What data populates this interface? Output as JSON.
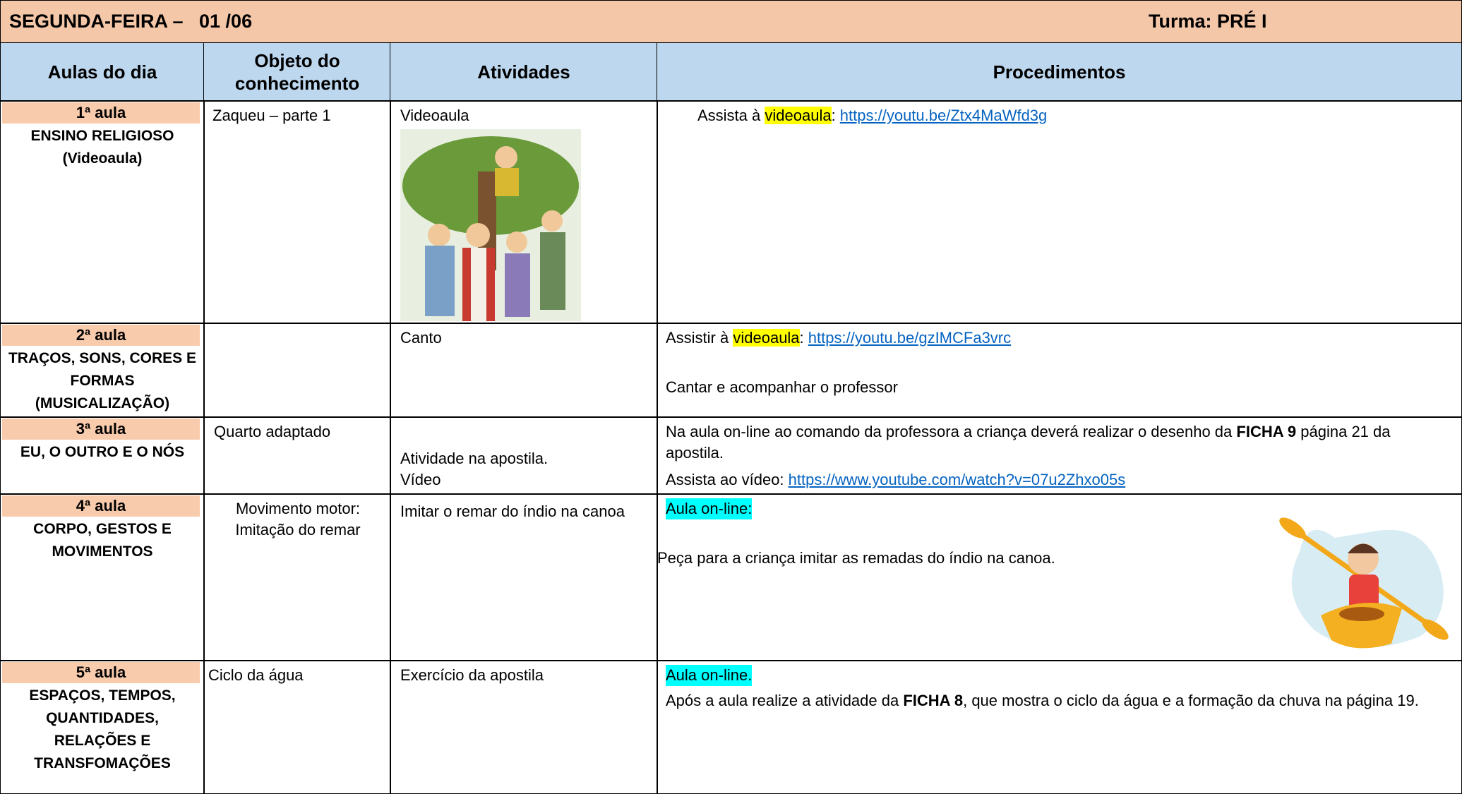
{
  "header": {
    "title": "SEGUNDA-FEIRA –   01 /06",
    "turma": "Turma: PRÉ I"
  },
  "table": {
    "columns": [
      "Aulas do dia",
      "Objeto do conhecimento",
      "Atividades",
      "Procedimentos"
    ],
    "rows": [
      {
        "lesson": "1ª aula",
        "subject": "ENSINO RELIGIOSO (Videoaula)",
        "object": "Zaqueu – parte 1",
        "activity": "Videoaula",
        "procedure": {
          "pre": "Assista à ",
          "highlight": "videoaula",
          "sep": ": ",
          "link": "https://youtu.be/Ztx4MaWfd3g"
        }
      },
      {
        "lesson": "2ª aula",
        "subject": "TRAÇOS, SONS, CORES E FORMAS (MUSICALIZAÇÃO)",
        "activity": "Canto",
        "procedure": {
          "pre": "Assistir à ",
          "highlight": "videoaula",
          "sep": ": ",
          "link": "https://youtu.be/gzIMCFa3vrc",
          "extra": "Cantar e acompanhar o professor"
        }
      },
      {
        "lesson": "3ª aula",
        "subject": "EU, O OUTRO E O NÓS",
        "object": "Quarto adaptado",
        "activity": "Atividade na apostila.",
        "activity2": "Vídeo",
        "procedure": {
          "pre": "Na aula on-line ao comando da professora a criança deverá realizar o desenho da ",
          "bold": "FICHA 9",
          "post": " página 21 da apostila.",
          "pre2": "Assista ao vídeo: ",
          "link": "https://www.youtube.com/watch?v=07u2Zhxo05s"
        }
      },
      {
        "lesson": "4ª aula",
        "subject": "CORPO, GESTOS E MOVIMENTOS",
        "object": "Movimento motor: Imitação do remar",
        "activity": "Imitar o remar do índio na canoa",
        "procedure": {
          "highlight": "Aula on-line:",
          "text": "Peça para a criança imitar as remadas do índio na canoa."
        }
      },
      {
        "lesson": "5ª aula",
        "subject": "ESPAÇOS, TEMPOS, QUANTIDADES, RELAÇÕES E TRANSFOMAÇÕES",
        "object": "Ciclo da água",
        "activity": "Exercício da apostila",
        "procedure": {
          "highlight": "Aula on-line.",
          "pre": "Após a aula realize a atividade da ",
          "bold": "FICHA 8",
          "post": ", que mostra o ciclo da água e a formação da chuva na página 19."
        }
      }
    ]
  }
}
